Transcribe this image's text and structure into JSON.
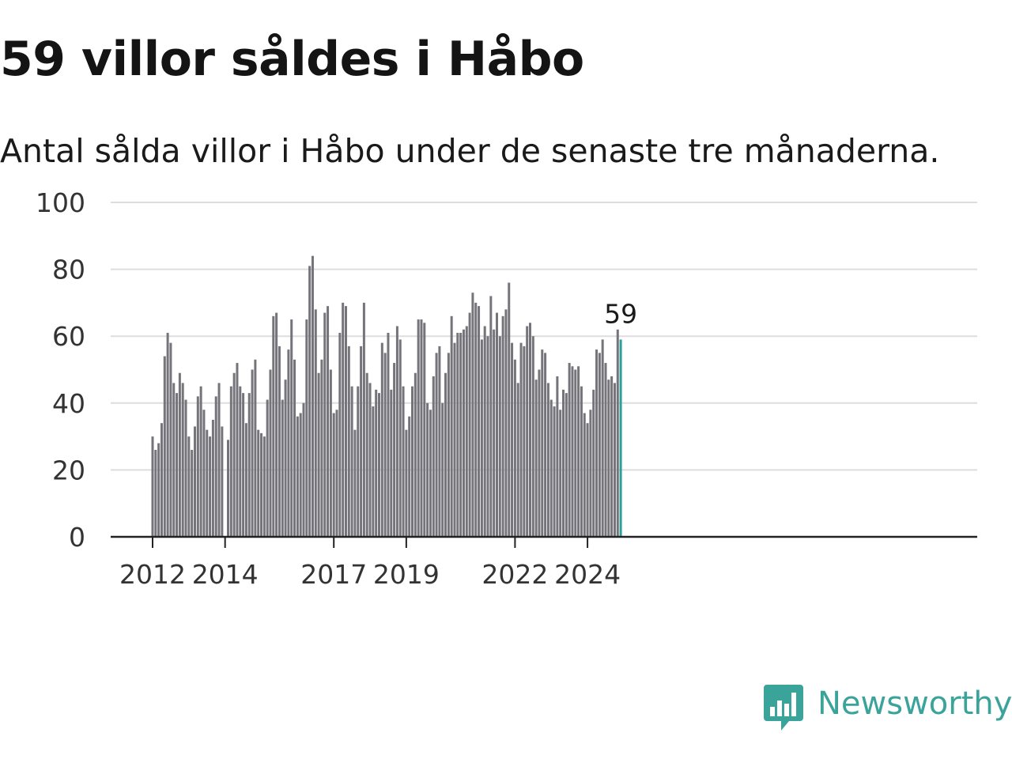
{
  "title": "59 villor såldes i Håbo",
  "subtitle": "Antal sålda villor i Håbo under de senaste tre månaderna.",
  "brand": {
    "name": "Newsworthy",
    "color": "#3aa39a",
    "icon": "newsworthy-bar-chart-icon"
  },
  "colors": {
    "bar": "#75747a",
    "highlight": "#2aa198",
    "grid": "#dddddd",
    "axis": "#222222"
  },
  "chart_data": {
    "type": "bar",
    "title": "59 villor såldes i Håbo",
    "subtitle": "Antal sålda villor i Håbo under de senaste tre månaderna.",
    "xlabel": "",
    "ylabel": "",
    "ylim": [
      0,
      100
    ],
    "yticks": [
      0,
      20,
      40,
      60,
      80,
      100
    ],
    "grid": true,
    "x_start": "2012-01",
    "x_end": "2024-12",
    "xticks": [
      {
        "label": "2012",
        "x": "2012-01"
      },
      {
        "label": "2014",
        "x": "2014-01"
      },
      {
        "label": "2017",
        "x": "2017-01"
      },
      {
        "label": "2019",
        "x": "2019-01"
      },
      {
        "label": "2022",
        "x": "2022-01"
      },
      {
        "label": "2024",
        "x": "2024-01"
      }
    ],
    "highlight": {
      "x": "2024-12",
      "value": 59,
      "label": "59"
    },
    "values": [
      30,
      26,
      28,
      34,
      54,
      61,
      58,
      46,
      43,
      49,
      46,
      41,
      30,
      26,
      33,
      42,
      45,
      38,
      32,
      30,
      35,
      42,
      46,
      33,
      null,
      29,
      45,
      49,
      52,
      45,
      43,
      34,
      43,
      50,
      53,
      32,
      31,
      30,
      41,
      50,
      66,
      67,
      57,
      41,
      47,
      56,
      65,
      53,
      36,
      37,
      40,
      65,
      81,
      84,
      68,
      49,
      53,
      67,
      69,
      50,
      37,
      38,
      61,
      70,
      69,
      57,
      45,
      32,
      45,
      57,
      70,
      49,
      46,
      39,
      44,
      43,
      58,
      55,
      61,
      44,
      52,
      63,
      59,
      45,
      32,
      36,
      45,
      49,
      65,
      65,
      64,
      40,
      38,
      48,
      55,
      57,
      40,
      49,
      55,
      66,
      58,
      61,
      61,
      62,
      63,
      67,
      73,
      70,
      69,
      59,
      63,
      60,
      72,
      62,
      67,
      60,
      66,
      68,
      76,
      58,
      53,
      46,
      58,
      57,
      63,
      64,
      60,
      47,
      50,
      56,
      55,
      46,
      41,
      39,
      48,
      38,
      44,
      43,
      52,
      51,
      50,
      51,
      45,
      37,
      34,
      38,
      44,
      56,
      55,
      59,
      52,
      47,
      48,
      46,
      62,
      59
    ]
  }
}
